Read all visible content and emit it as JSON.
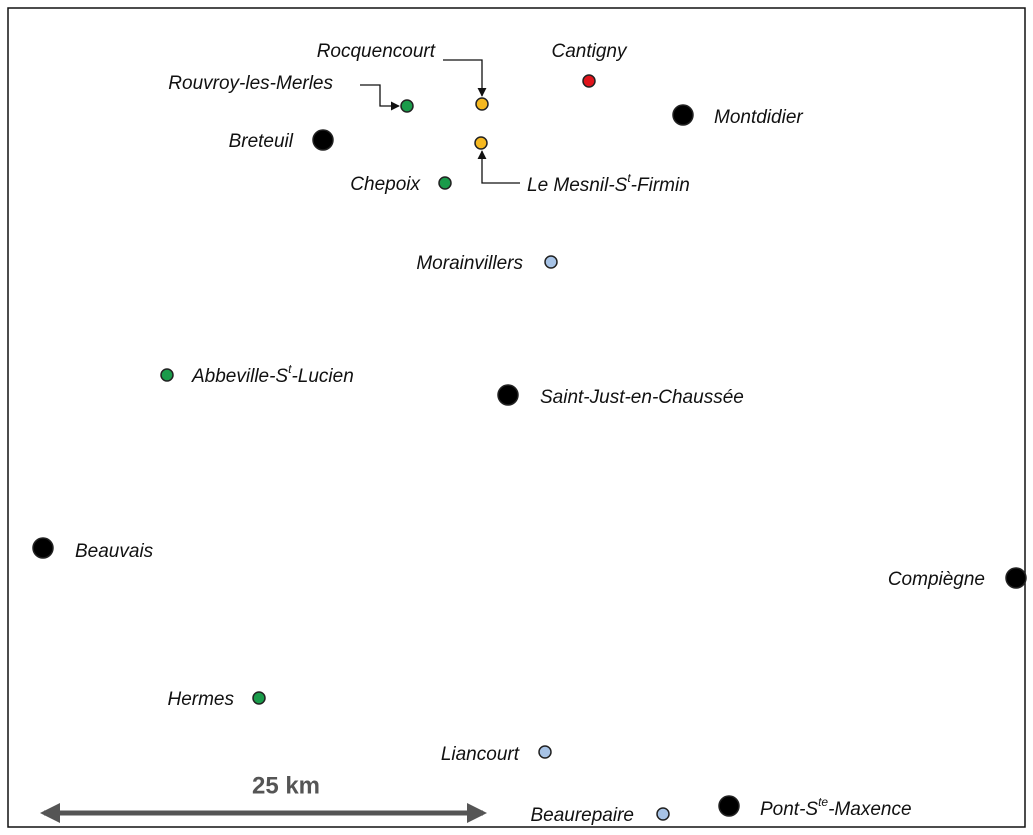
{
  "places": [
    {
      "parts": [
        {
          "text": "Rocquencourt"
        }
      ],
      "color": "#f5b820"
    },
    {
      "parts": [
        {
          "text": "Cantigny"
        }
      ],
      "color": "#e0141b"
    },
    {
      "parts": [
        {
          "text": "Rouvroy-les-Merles"
        }
      ],
      "color": "#1a9b4a"
    },
    {
      "parts": [
        {
          "text": "Montdidier"
        }
      ],
      "color": "#000000"
    },
    {
      "parts": [
        {
          "text": "Breteuil"
        }
      ],
      "color": "#000000"
    },
    {
      "parts": [
        {
          "text": "Le Mesnil-S"
        },
        {
          "text": "t",
          "sup": true
        },
        {
          "text": "-Firmin"
        }
      ],
      "color": "#f5b820"
    },
    {
      "parts": [
        {
          "text": "Chepoix"
        }
      ],
      "color": "#1a9b4a"
    },
    {
      "parts": [
        {
          "text": "Morainvillers"
        }
      ],
      "color": "#a7c3e6"
    },
    {
      "parts": [
        {
          "text": "Abbeville-S"
        },
        {
          "text": "t",
          "sup": true
        },
        {
          "text": "-Lucien"
        }
      ],
      "color": "#1a9b4a"
    },
    {
      "parts": [
        {
          "text": "Saint-Just-en-Chaussée"
        }
      ],
      "color": "#000000"
    },
    {
      "parts": [
        {
          "text": "Beauvais"
        }
      ],
      "color": "#000000"
    },
    {
      "parts": [
        {
          "text": "Compiègne"
        }
      ],
      "color": "#000000"
    },
    {
      "parts": [
        {
          "text": "Hermes"
        }
      ],
      "color": "#1a9b4a"
    },
    {
      "parts": [
        {
          "text": "Liancourt"
        }
      ],
      "color": "#a7c3e6"
    },
    {
      "parts": [
        {
          "text": "Beaurepaire"
        }
      ],
      "color": "#a7c3e6"
    },
    {
      "parts": [
        {
          "text": "Pont-S"
        },
        {
          "text": "te",
          "sup": true
        },
        {
          "text": "-Maxence"
        }
      ],
      "color": "#000000"
    }
  ],
  "scale_bar": {
    "label": "25 km"
  }
}
